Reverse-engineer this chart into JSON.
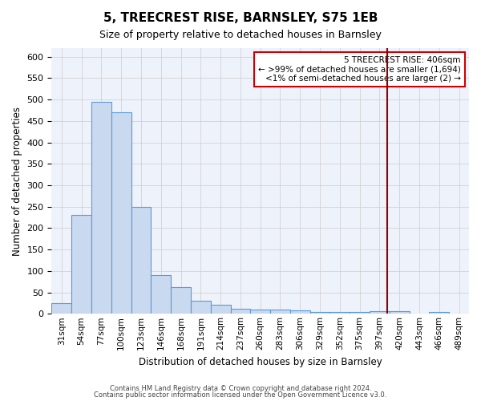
{
  "title": "5, TREECREST RISE, BARNSLEY, S75 1EB",
  "subtitle": "Size of property relative to detached houses in Barnsley",
  "xlabel": "Distribution of detached houses by size in Barnsley",
  "ylabel": "Number of detached properties",
  "bar_labels": [
    "31sqm",
    "54sqm",
    "77sqm",
    "100sqm",
    "123sqm",
    "146sqm",
    "168sqm",
    "191sqm",
    "214sqm",
    "237sqm",
    "260sqm",
    "283sqm",
    "306sqm",
    "329sqm",
    "352sqm",
    "375sqm",
    "397sqm",
    "420sqm",
    "443sqm",
    "466sqm",
    "489sqm"
  ],
  "bar_values": [
    25,
    230,
    495,
    470,
    250,
    90,
    63,
    30,
    22,
    12,
    10,
    10,
    8,
    5,
    5,
    4,
    7,
    7,
    0,
    5,
    0
  ],
  "bar_color": "#c9d9f0",
  "bar_edge_color": "#5b9bd5",
  "grid_color": "#cccccc",
  "background_color": "#eef2fb",
  "red_line_color": "#8b0000",
  "annotation_line1": "5 TREECREST RISE: 406sqm",
  "annotation_line2": "← >99% of detached houses are smaller (1,694)",
  "annotation_line3": "<1% of semi-detached houses are larger (2) →",
  "annotation_box_color": "#ffffff",
  "annotation_box_edge": "#cc0000",
  "footer_line1": "Contains HM Land Registry data © Crown copyright and database right 2024.",
  "footer_line2": "Contains public sector information licensed under the Open Government Licence v3.0.",
  "ylim": [
    0,
    620
  ],
  "yticks": [
    0,
    50,
    100,
    150,
    200,
    250,
    300,
    350,
    400,
    450,
    500,
    550,
    600
  ]
}
